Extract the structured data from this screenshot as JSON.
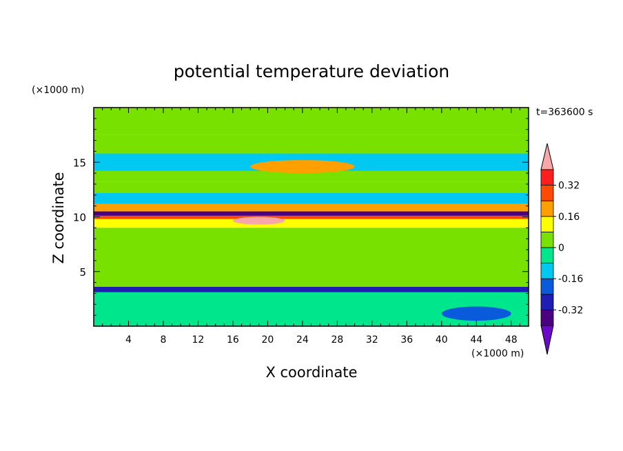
{
  "chart_data": {
    "type": "heatmap",
    "title": "potential temperature deviation",
    "xlabel": "X coordinate",
    "ylabel": "Z coordinate",
    "x_unit": "(×1000 m)",
    "y_unit": "(×1000 m)",
    "time_label": "t=363600 s",
    "xlim": [
      0,
      50
    ],
    "ylim": [
      0,
      20
    ],
    "x_ticks": [
      4,
      8,
      12,
      16,
      20,
      24,
      28,
      32,
      36,
      40,
      44,
      48
    ],
    "y_ticks": [
      5,
      10,
      15
    ],
    "colorbar": {
      "labels": [
        "0.32",
        "0.16",
        "0",
        "-0.16",
        "-0.32"
      ],
      "label_values": [
        0.32,
        0.16,
        0,
        -0.16,
        -0.32
      ],
      "bounds": [
        -0.4,
        -0.32,
        -0.24,
        -0.16,
        -0.08,
        0,
        0.08,
        0.16,
        0.24,
        0.32,
        0.4
      ],
      "colors": [
        "#4b0082",
        "#1e1eb4",
        "#0a5adc",
        "#00c8f0",
        "#00e68c",
        "#78e100",
        "#ffff00",
        "#ffa000",
        "#ff4b00",
        "#ff1e1e"
      ],
      "under_color": "#6a0ac8",
      "over_color": "#f8a8a8"
    },
    "bands": [
      {
        "z": [
          17.5,
          20.0
        ],
        "value": 0.02
      },
      {
        "z": [
          15.8,
          17.5
        ],
        "value": 0.04
      },
      {
        "z": [
          14.2,
          15.8
        ],
        "value": -0.11
      },
      {
        "z": [
          13.2,
          14.2
        ],
        "value": 0.05
      },
      {
        "z": [
          12.2,
          13.2
        ],
        "value": 0.06
      },
      {
        "z": [
          11.2,
          12.2
        ],
        "value": -0.12
      },
      {
        "z": [
          10.5,
          11.2
        ],
        "value": 0.18
      },
      {
        "z": [
          10.1,
          10.5
        ],
        "value": -0.34
      },
      {
        "z": [
          9.8,
          10.1
        ],
        "value": 0.3
      },
      {
        "z": [
          9.0,
          9.8
        ],
        "value": 0.1
      },
      {
        "z": [
          3.6,
          9.0
        ],
        "value": 0.03
      },
      {
        "z": [
          3.1,
          3.6
        ],
        "value": -0.3
      },
      {
        "z": [
          0.0,
          3.1
        ],
        "value": -0.08
      }
    ],
    "features": [
      {
        "x": [
          0,
          10
        ],
        "z": [
          17.5,
          20.0
        ],
        "value": 0.04
      },
      {
        "x": [
          26,
          34
        ],
        "z": [
          17.5,
          20.0
        ],
        "value": 0.04
      },
      {
        "x": [
          18,
          30
        ],
        "z": [
          14.0,
          15.2
        ],
        "value": 0.18
      },
      {
        "x": [
          16,
          22
        ],
        "z": [
          9.3,
          10.0
        ],
        "value": 0.42
      },
      {
        "x": [
          40,
          48
        ],
        "z": [
          0.5,
          1.8
        ],
        "value": -0.18
      }
    ]
  }
}
